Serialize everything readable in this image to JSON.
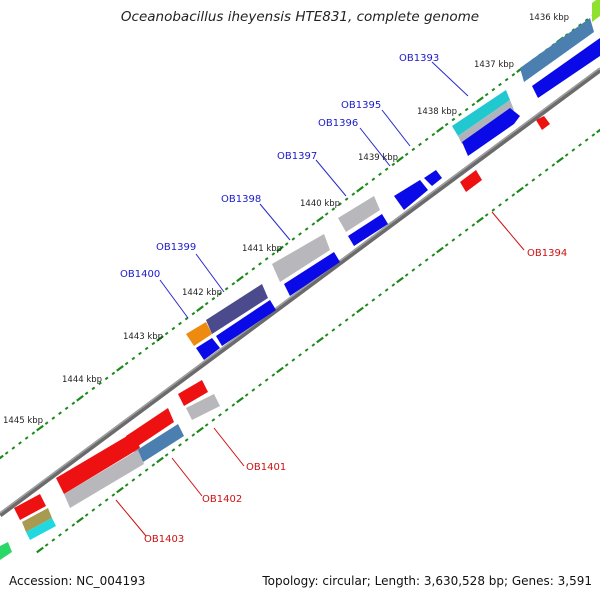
{
  "title": "Oceanobacillus iheyensis HTE831, complete genome",
  "accession": "Accession: NC_004193",
  "summary": "Topology: circular; Length: 3,630,528 bp; Genes: 3,591",
  "colors": {
    "backbone": "#7a7a7a",
    "ruler_dots": "#1a8a1a",
    "forward_label": "#1a1acc",
    "reverse_label": "#cc1111",
    "blue_arrow": "#0a0ae8",
    "red_arrow": "#ee1111",
    "gray_block": "#b8b8bc",
    "steelblue_block": "#4a7fb0",
    "navy_block": "#4a4a8c",
    "orange_block": "#ee8a10",
    "cyan_block": "#22d8e0",
    "olive_block": "#a89a50",
    "green_block": "#2ad86a",
    "lime_block": "#90e030"
  },
  "ruler_labels": [
    "1436 kbp",
    "1437 kbp",
    "1438 kbp",
    "1439 kbp",
    "1440 kbp",
    "1441 kbp",
    "1442 kbp",
    "1443 kbp",
    "1444 kbp",
    "1445 kbp"
  ],
  "gene_labels_forward": [
    "OB1393",
    "OB1395",
    "OB1396",
    "OB1397",
    "OB1398",
    "OB1399",
    "OB1400"
  ],
  "gene_labels_reverse": [
    "OB1394",
    "OB1401",
    "OB1402",
    "OB1403"
  ]
}
